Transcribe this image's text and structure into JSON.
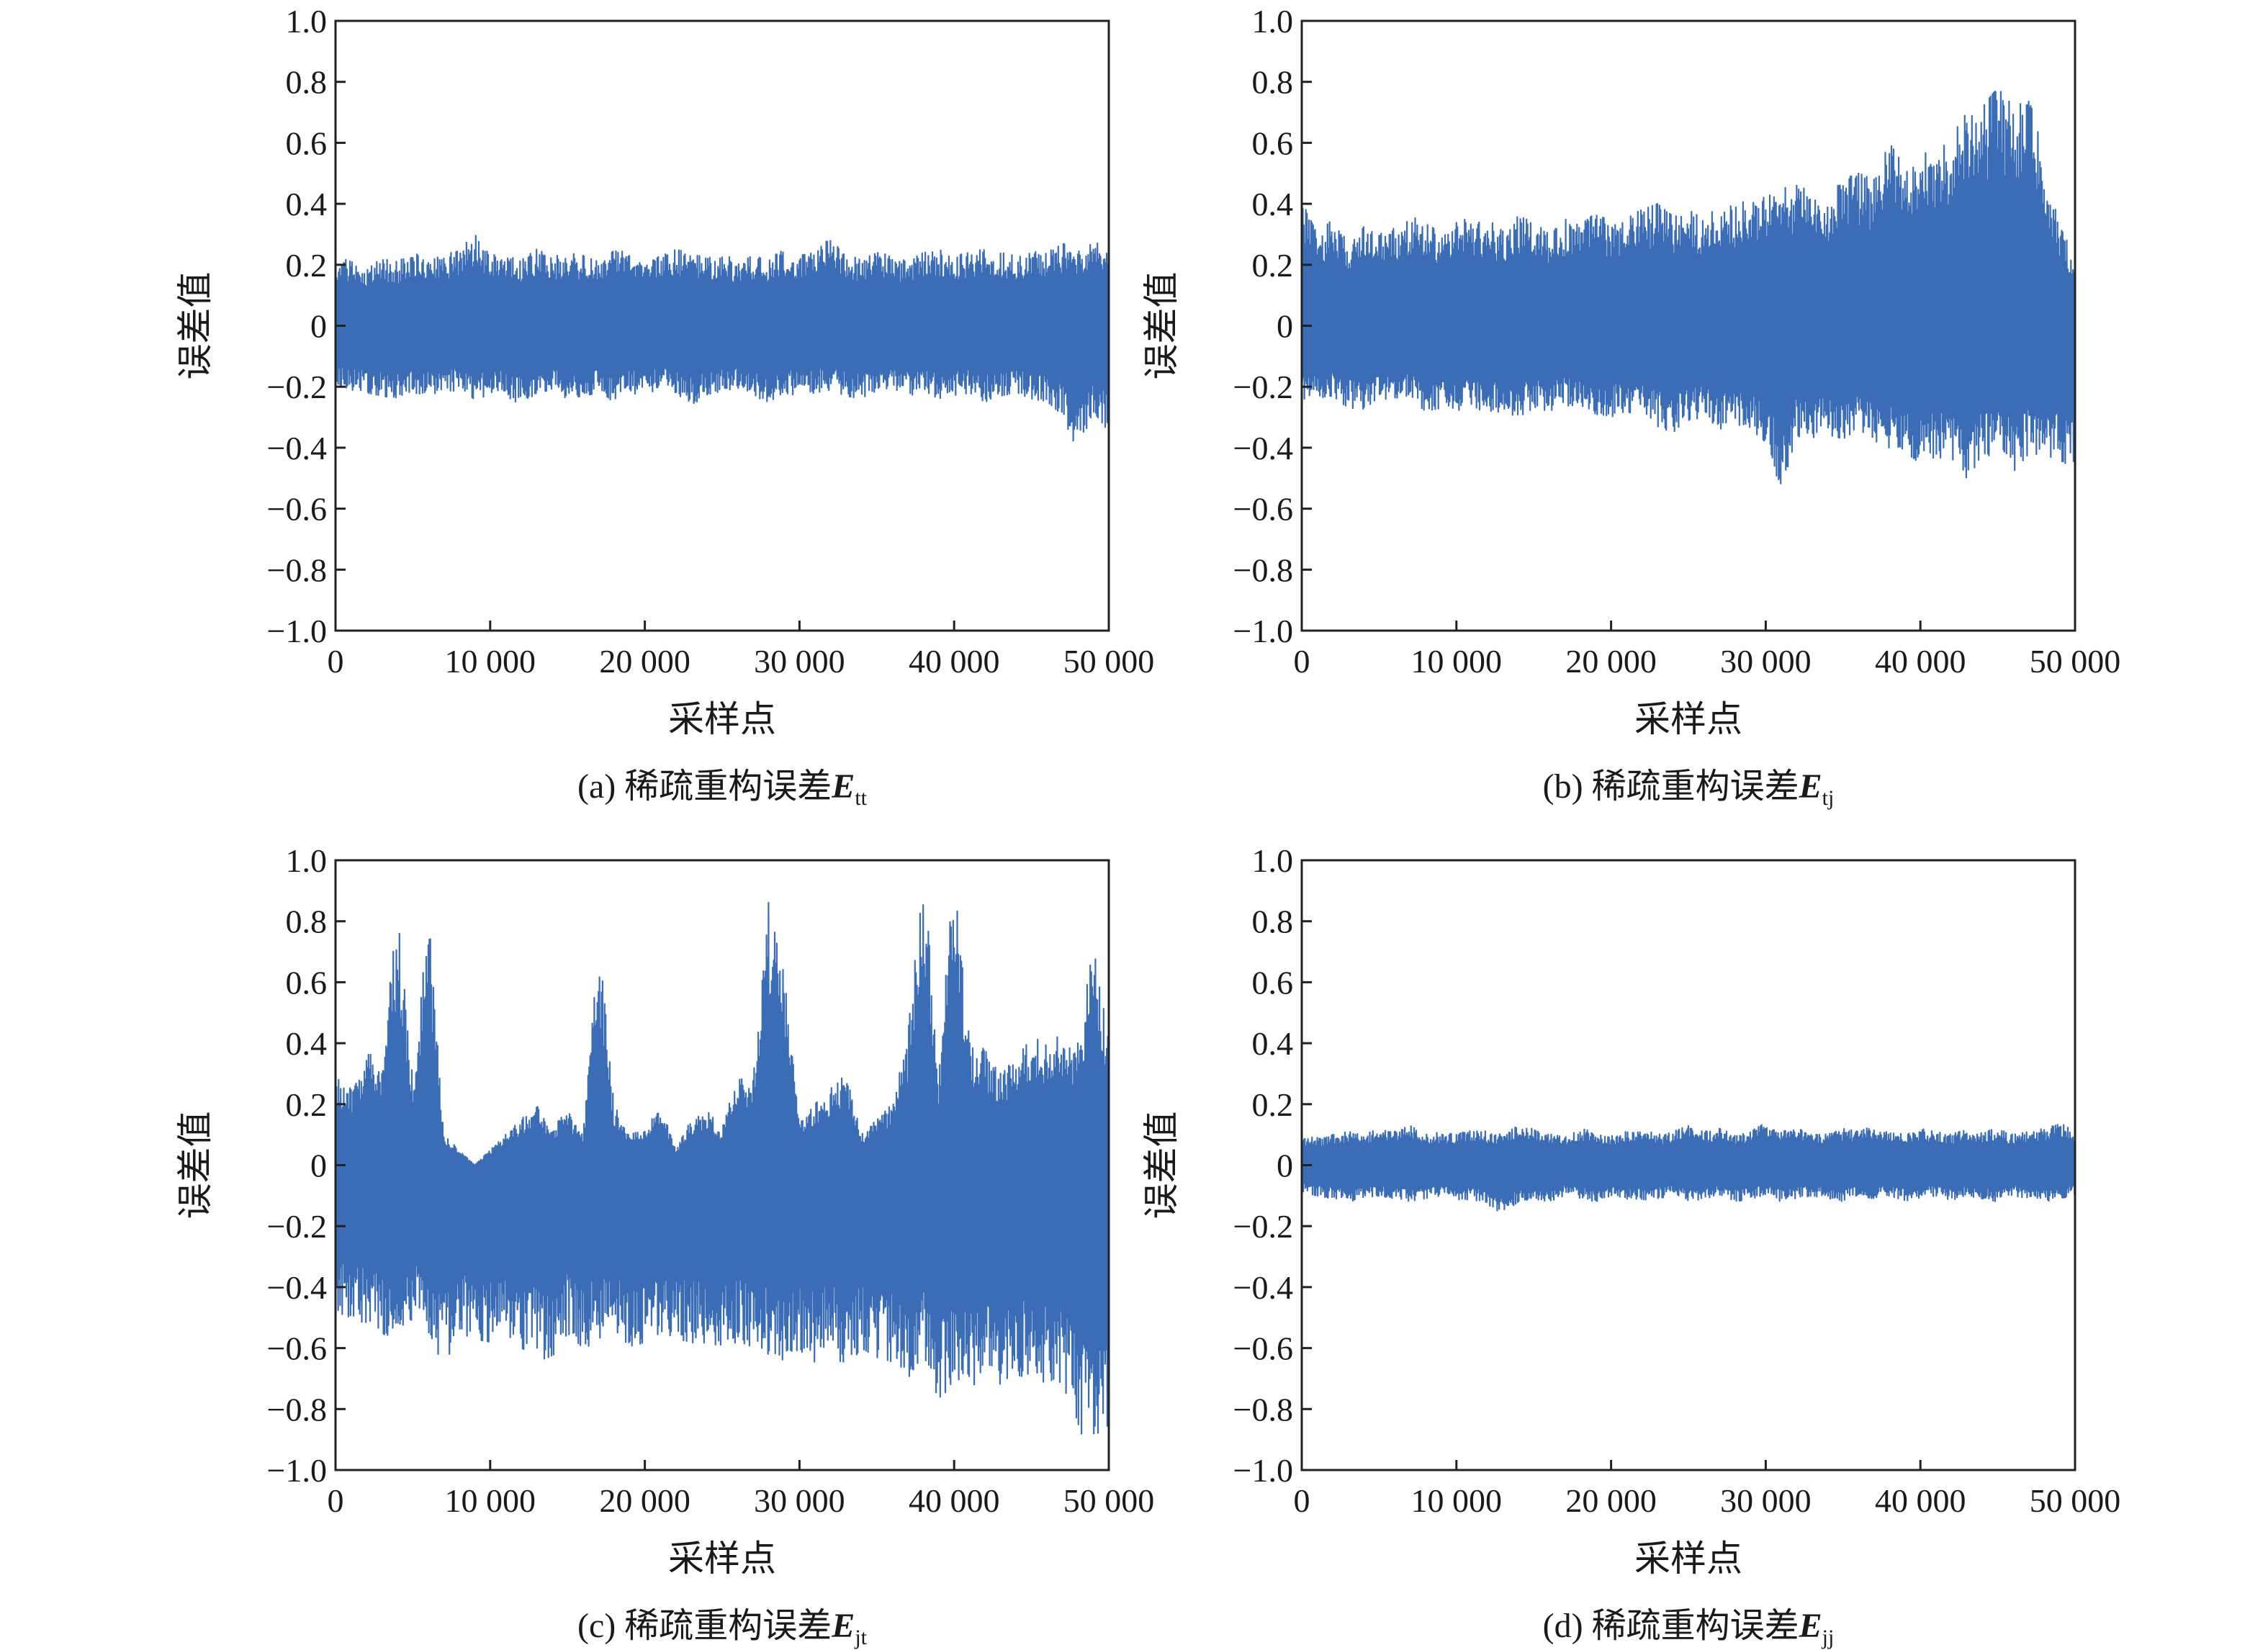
{
  "chart_data": [
    {
      "type": "line",
      "panel": "a",
      "caption": {
        "prefix": "(a) 稀疏重构误差",
        "symbol": "E",
        "subscript": "tt"
      },
      "xlabel": "采样点",
      "ylabel": "误差值",
      "xlim": [
        0,
        50000
      ],
      "ylim": [
        -1.0,
        1.0
      ],
      "xticks": [
        {
          "value": 0,
          "label": "0"
        },
        {
          "value": 10000,
          "label": "10 000"
        },
        {
          "value": 20000,
          "label": "20 000"
        },
        {
          "value": 30000,
          "label": "30 000"
        },
        {
          "value": 40000,
          "label": "40 000"
        },
        {
          "value": 50000,
          "label": "50 000"
        }
      ],
      "yticks": [
        {
          "value": 1.0,
          "label": "1.0"
        },
        {
          "value": 0.8,
          "label": "0.8"
        },
        {
          "value": 0.6,
          "label": "0.6"
        },
        {
          "value": 0.4,
          "label": "0.4"
        },
        {
          "value": 0.2,
          "label": "0.2"
        },
        {
          "value": 0,
          "label": "0"
        },
        {
          "value": -0.2,
          "label": "−0.2"
        },
        {
          "value": -0.4,
          "label": "−0.4"
        },
        {
          "value": -0.6,
          "label": "−0.6"
        },
        {
          "value": -0.8,
          "label": "−0.8"
        },
        {
          "value": -1.0,
          "label": "−1.0"
        }
      ],
      "grid": false,
      "line_color": "#3a6db5",
      "series": [
        {
          "x": [
            0,
            1000,
            2000,
            3000,
            4000,
            5000,
            6000,
            7000,
            8000,
            9000,
            10000,
            11000,
            12000,
            13000,
            14000,
            15000,
            16000,
            17000,
            18000,
            19000,
            20000,
            21000,
            22000,
            23000,
            24000,
            25000,
            26000,
            27000,
            28000,
            29000,
            30000,
            31000,
            32000,
            33000,
            34000,
            35000,
            36000,
            37000,
            38000,
            39000,
            40000,
            41000,
            42000,
            43000,
            44000,
            45000,
            46000,
            47000,
            48000,
            49000,
            50000
          ],
          "upper": [
            0.23,
            0.21,
            0.2,
            0.22,
            0.21,
            0.24,
            0.22,
            0.23,
            0.25,
            0.3,
            0.23,
            0.24,
            0.22,
            0.25,
            0.23,
            0.24,
            0.23,
            0.22,
            0.26,
            0.23,
            0.25,
            0.23,
            0.25,
            0.24,
            0.22,
            0.24,
            0.21,
            0.23,
            0.22,
            0.25,
            0.23,
            0.24,
            0.29,
            0.23,
            0.22,
            0.24,
            0.23,
            0.21,
            0.24,
            0.25,
            0.23,
            0.24,
            0.26,
            0.24,
            0.23,
            0.25,
            0.24,
            0.27,
            0.25,
            0.28,
            0.28
          ],
          "lower": [
            -0.2,
            -0.21,
            -0.22,
            -0.23,
            -0.24,
            -0.22,
            -0.23,
            -0.22,
            -0.21,
            -0.25,
            -0.22,
            -0.23,
            -0.26,
            -0.22,
            -0.21,
            -0.24,
            -0.23,
            -0.22,
            -0.25,
            -0.22,
            -0.23,
            -0.21,
            -0.22,
            -0.26,
            -0.23,
            -0.22,
            -0.21,
            -0.23,
            -0.25,
            -0.22,
            -0.23,
            -0.22,
            -0.21,
            -0.23,
            -0.24,
            -0.22,
            -0.21,
            -0.23,
            -0.22,
            -0.24,
            -0.23,
            -0.22,
            -0.25,
            -0.23,
            -0.22,
            -0.24,
            -0.25,
            -0.3,
            -0.41,
            -0.28,
            -0.35
          ]
        }
      ]
    },
    {
      "type": "line",
      "panel": "b",
      "caption": {
        "prefix": "(b) 稀疏重构误差",
        "symbol": "E",
        "subscript": "tj"
      },
      "xlabel": "采样点",
      "ylabel": "误差值",
      "xlim": [
        0,
        50000
      ],
      "ylim": [
        -1.0,
        1.0
      ],
      "xticks": [
        {
          "value": 0,
          "label": "0"
        },
        {
          "value": 10000,
          "label": "10 000"
        },
        {
          "value": 20000,
          "label": "20 000"
        },
        {
          "value": 30000,
          "label": "30 000"
        },
        {
          "value": 40000,
          "label": "40 000"
        },
        {
          "value": 50000,
          "label": "50 000"
        }
      ],
      "yticks": [
        {
          "value": 1.0,
          "label": "1.0"
        },
        {
          "value": 0.8,
          "label": "0.8"
        },
        {
          "value": 0.6,
          "label": "0.6"
        },
        {
          "value": 0.4,
          "label": "0.4"
        },
        {
          "value": 0.2,
          "label": "0.2"
        },
        {
          "value": 0,
          "label": "0"
        },
        {
          "value": -0.2,
          "label": "−0.2"
        },
        {
          "value": -0.4,
          "label": "−0.4"
        },
        {
          "value": -0.6,
          "label": "−0.6"
        },
        {
          "value": -0.8,
          "label": "−0.8"
        },
        {
          "value": -1.0,
          "label": "−1.0"
        }
      ],
      "grid": false,
      "line_color": "#3a6db5",
      "series": [
        {
          "x": [
            0,
            1000,
            2000,
            3000,
            4000,
            5000,
            6000,
            7000,
            8000,
            9000,
            10000,
            11000,
            12000,
            13000,
            14000,
            15000,
            16000,
            17000,
            18000,
            19000,
            20000,
            21000,
            22000,
            23000,
            24000,
            25000,
            26000,
            27000,
            28000,
            29000,
            30000,
            31000,
            32000,
            33000,
            34000,
            35000,
            36000,
            37000,
            38000,
            39000,
            40000,
            41000,
            42000,
            43000,
            44000,
            45000,
            46000,
            47000,
            48000,
            49000,
            50000
          ],
          "upper": [
            0.41,
            0.3,
            0.35,
            0.28,
            0.33,
            0.3,
            0.32,
            0.36,
            0.34,
            0.3,
            0.37,
            0.33,
            0.35,
            0.31,
            0.36,
            0.34,
            0.3,
            0.35,
            0.33,
            0.37,
            0.34,
            0.36,
            0.38,
            0.4,
            0.36,
            0.38,
            0.35,
            0.4,
            0.39,
            0.43,
            0.42,
            0.45,
            0.46,
            0.44,
            0.42,
            0.48,
            0.5,
            0.48,
            0.6,
            0.52,
            0.55,
            0.6,
            0.62,
            0.7,
            0.72,
            0.78,
            0.72,
            0.79,
            0.54,
            0.35,
            0.2
          ],
          "lower": [
            -0.25,
            -0.24,
            -0.23,
            -0.27,
            -0.28,
            -0.25,
            -0.26,
            -0.24,
            -0.28,
            -0.27,
            -0.28,
            -0.26,
            -0.29,
            -0.28,
            -0.3,
            -0.27,
            -0.28,
            -0.26,
            -0.27,
            -0.29,
            -0.3,
            -0.28,
            -0.3,
            -0.33,
            -0.35,
            -0.31,
            -0.3,
            -0.34,
            -0.32,
            -0.35,
            -0.38,
            -0.54,
            -0.36,
            -0.38,
            -0.36,
            -0.37,
            -0.35,
            -0.39,
            -0.4,
            -0.42,
            -0.45,
            -0.43,
            -0.44,
            -0.5,
            -0.43,
            -0.42,
            -0.48,
            -0.42,
            -0.45,
            -0.44,
            -0.47
          ]
        }
      ]
    },
    {
      "type": "line",
      "panel": "c",
      "caption": {
        "prefix": "(c) 稀疏重构误差",
        "symbol": "E",
        "subscript": "jt"
      },
      "xlabel": "采样点",
      "ylabel": "误差值",
      "xlim": [
        0,
        50000
      ],
      "ylim": [
        -1.0,
        1.0
      ],
      "xticks": [
        {
          "value": 0,
          "label": "0"
        },
        {
          "value": 10000,
          "label": "10 000"
        },
        {
          "value": 20000,
          "label": "20 000"
        },
        {
          "value": 30000,
          "label": "30 000"
        },
        {
          "value": 40000,
          "label": "40 000"
        },
        {
          "value": 50000,
          "label": "50 000"
        }
      ],
      "yticks": [
        {
          "value": 1.0,
          "label": "1.0"
        },
        {
          "value": 0.8,
          "label": "0.8"
        },
        {
          "value": 0.6,
          "label": "0.6"
        },
        {
          "value": 0.4,
          "label": "0.4"
        },
        {
          "value": 0.2,
          "label": "0.2"
        },
        {
          "value": 0,
          "label": "0"
        },
        {
          "value": -0.2,
          "label": "−0.2"
        },
        {
          "value": -0.4,
          "label": "−0.4"
        },
        {
          "value": -0.6,
          "label": "−0.6"
        },
        {
          "value": -0.8,
          "label": "−0.8"
        },
        {
          "value": -1.0,
          "label": "−1.0"
        }
      ],
      "grid": false,
      "line_color": "#3a6db5",
      "series": [
        {
          "x": [
            0,
            1000,
            2000,
            3000,
            4000,
            5000,
            6000,
            7000,
            8000,
            9000,
            10000,
            11000,
            12000,
            13000,
            14000,
            15000,
            16000,
            17000,
            18000,
            19000,
            20000,
            21000,
            22000,
            23000,
            24000,
            25000,
            26000,
            27000,
            28000,
            29000,
            30000,
            31000,
            32000,
            33000,
            34000,
            35000,
            36000,
            37000,
            38000,
            39000,
            40000,
            41000,
            42000,
            43000,
            44000,
            45000,
            46000,
            47000,
            48000,
            49000,
            50000
          ],
          "upper": [
            0.3,
            0.25,
            0.38,
            0.35,
            0.83,
            0.3,
            0.84,
            0.1,
            0.05,
            0.0,
            0.05,
            0.1,
            0.15,
            0.2,
            0.12,
            0.18,
            0.1,
            0.75,
            0.2,
            0.1,
            0.12,
            0.2,
            0.05,
            0.15,
            0.18,
            0.12,
            0.3,
            0.28,
            0.87,
            0.63,
            0.15,
            0.2,
            0.25,
            0.3,
            0.1,
            0.15,
            0.2,
            0.42,
            1.0,
            0.3,
            0.99,
            0.4,
            0.38,
            0.3,
            0.35,
            0.42,
            0.4,
            0.43,
            0.4,
            0.72,
            0.43
          ],
          "lower": [
            -0.48,
            -0.5,
            -0.52,
            -0.55,
            -0.58,
            -0.5,
            -0.55,
            -0.66,
            -0.55,
            -0.57,
            -0.58,
            -0.55,
            -0.6,
            -0.62,
            -0.65,
            -0.55,
            -0.6,
            -0.58,
            -0.55,
            -0.6,
            -0.58,
            -0.55,
            -0.57,
            -0.58,
            -0.6,
            -0.62,
            -0.58,
            -0.6,
            -0.62,
            -0.64,
            -0.62,
            -0.65,
            -0.6,
            -0.67,
            -0.6,
            -0.63,
            -0.65,
            -0.7,
            -0.62,
            -0.78,
            -0.7,
            -0.75,
            -0.65,
            -0.72,
            -0.7,
            -0.68,
            -0.72,
            -0.75,
            -0.85,
            -1.0,
            -0.86
          ]
        }
      ]
    },
    {
      "type": "line",
      "panel": "d",
      "caption": {
        "prefix": "(d) 稀疏重构误差",
        "symbol": "E",
        "subscript": "jj"
      },
      "xlabel": "采样点",
      "ylabel": "误差值",
      "xlim": [
        0,
        50000
      ],
      "ylim": [
        -1.0,
        1.0
      ],
      "xticks": [
        {
          "value": 0,
          "label": "0"
        },
        {
          "value": 10000,
          "label": "10 000"
        },
        {
          "value": 20000,
          "label": "20 000"
        },
        {
          "value": 30000,
          "label": "30 000"
        },
        {
          "value": 40000,
          "label": "40 000"
        },
        {
          "value": 50000,
          "label": "50 000"
        }
      ],
      "yticks": [
        {
          "value": 1.0,
          "label": "1.0"
        },
        {
          "value": 0.8,
          "label": "0.8"
        },
        {
          "value": 0.6,
          "label": "0.6"
        },
        {
          "value": 0.4,
          "label": "0.4"
        },
        {
          "value": 0.2,
          "label": "0.2"
        },
        {
          "value": 0,
          "label": "0"
        },
        {
          "value": -0.2,
          "label": "−0.2"
        },
        {
          "value": -0.4,
          "label": "−0.4"
        },
        {
          "value": -0.6,
          "label": "−0.6"
        },
        {
          "value": -0.8,
          "label": "−0.8"
        },
        {
          "value": -1.0,
          "label": "−1.0"
        }
      ],
      "grid": false,
      "line_color": "#3a6db5",
      "series": [
        {
          "x": [
            0,
            1000,
            2000,
            3000,
            4000,
            5000,
            6000,
            7000,
            8000,
            9000,
            10000,
            11000,
            12000,
            13000,
            14000,
            15000,
            16000,
            17000,
            18000,
            19000,
            20000,
            21000,
            22000,
            23000,
            24000,
            25000,
            26000,
            27000,
            28000,
            29000,
            30000,
            31000,
            32000,
            33000,
            34000,
            35000,
            36000,
            37000,
            38000,
            39000,
            40000,
            41000,
            42000,
            43000,
            44000,
            45000,
            46000,
            47000,
            48000,
            49000,
            50000
          ],
          "upper": [
            0.1,
            0.09,
            0.1,
            0.11,
            0.1,
            0.12,
            0.11,
            0.13,
            0.1,
            0.11,
            0.1,
            0.12,
            0.11,
            0.1,
            0.13,
            0.12,
            0.11,
            0.1,
            0.12,
            0.11,
            0.1,
            0.11,
            0.12,
            0.1,
            0.11,
            0.13,
            0.11,
            0.12,
            0.1,
            0.11,
            0.14,
            0.11,
            0.12,
            0.11,
            0.1,
            0.12,
            0.11,
            0.13,
            0.11,
            0.1,
            0.12,
            0.11,
            0.1,
            0.12,
            0.11,
            0.12,
            0.1,
            0.11,
            0.12,
            0.14,
            0.11
          ],
          "lower": [
            -0.09,
            -0.1,
            -0.11,
            -0.12,
            -0.11,
            -0.1,
            -0.11,
            -0.12,
            -0.11,
            -0.1,
            -0.12,
            -0.11,
            -0.13,
            -0.16,
            -0.12,
            -0.11,
            -0.12,
            -0.1,
            -0.11,
            -0.12,
            -0.1,
            -0.11,
            -0.12,
            -0.11,
            -0.1,
            -0.12,
            -0.11,
            -0.1,
            -0.12,
            -0.11,
            -0.1,
            -0.12,
            -0.11,
            -0.1,
            -0.11,
            -0.12,
            -0.1,
            -0.11,
            -0.1,
            -0.12,
            -0.11,
            -0.1,
            -0.12,
            -0.1,
            -0.11,
            -0.12,
            -0.1,
            -0.11,
            -0.12,
            -0.11,
            -0.1
          ]
        }
      ]
    }
  ]
}
